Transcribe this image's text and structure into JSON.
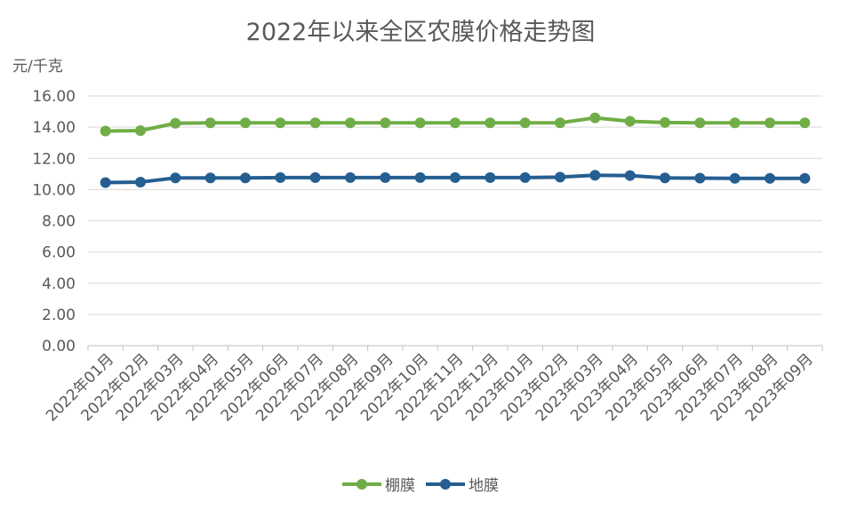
{
  "chart_data": {
    "type": "line",
    "title": "2022年以来全区农膜价格走势图",
    "ylabel": "元/千克",
    "xlabel": "",
    "ylim": [
      0,
      16
    ],
    "ytick_labels": [
      "0.00",
      "2.00",
      "4.00",
      "6.00",
      "8.00",
      "10.00",
      "12.00",
      "14.00",
      "16.00"
    ],
    "grid": true,
    "legend_position": "bottom",
    "categories": [
      "2022年01月",
      "2022年02月",
      "2022年03月",
      "2022年04月",
      "2022年05月",
      "2022年06月",
      "2022年07月",
      "2022年08月",
      "2022年09月",
      "2022年10月",
      "2022年11月",
      "2022年12月",
      "2023年01月",
      "2023年02月",
      "2023年03月",
      "2023年04月",
      "2023年05月",
      "2023年06月",
      "2023年07月",
      "2023年08月",
      "2023年09月"
    ],
    "series": [
      {
        "name": "棚膜",
        "color": "#70ad47",
        "values": [
          13.75,
          13.78,
          14.25,
          14.28,
          14.28,
          14.28,
          14.28,
          14.28,
          14.28,
          14.28,
          14.28,
          14.28,
          14.28,
          14.28,
          14.6,
          14.38,
          14.3,
          14.28,
          14.28,
          14.28,
          14.28
        ]
      },
      {
        "name": "地膜",
        "color": "#255e91",
        "values": [
          10.45,
          10.48,
          10.75,
          10.75,
          10.75,
          10.77,
          10.77,
          10.77,
          10.77,
          10.77,
          10.77,
          10.77,
          10.77,
          10.8,
          10.92,
          10.9,
          10.75,
          10.73,
          10.72,
          10.72,
          10.72
        ]
      }
    ]
  }
}
